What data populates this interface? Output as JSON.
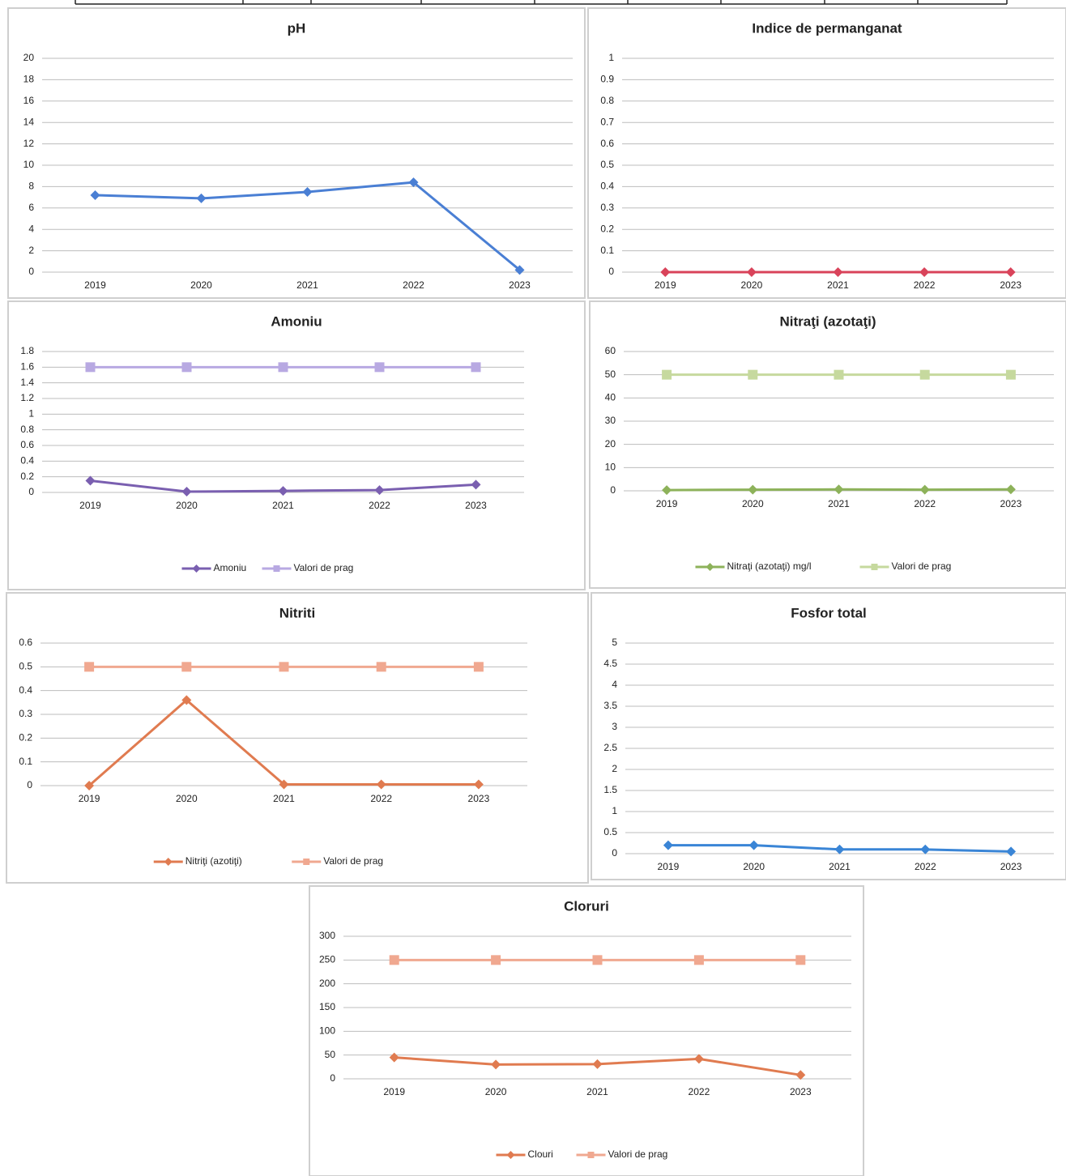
{
  "chart_data": [
    {
      "type": "line",
      "title": "pH",
      "categories": [
        "2019",
        "2020",
        "2021",
        "2022",
        "2023"
      ],
      "series": [
        {
          "name": null,
          "color": "#4a7fd4",
          "marker": "diamond",
          "values": [
            7.2,
            6.9,
            7.5,
            8.4,
            0.2
          ]
        }
      ],
      "ylim": [
        0,
        20
      ],
      "yticks": [
        0,
        2,
        4,
        6,
        8,
        10,
        12,
        14,
        16,
        18,
        20
      ],
      "grid": true,
      "legend": null
    },
    {
      "type": "line",
      "title": "Indice de permanganat",
      "categories": [
        "2019",
        "2020",
        "2021",
        "2022",
        "2023"
      ],
      "series": [
        {
          "name": null,
          "color": "#d9435a",
          "marker": "diamond",
          "values": [
            0,
            0,
            0,
            0,
            0
          ]
        }
      ],
      "ylim": [
        0,
        1
      ],
      "yticks": [
        0,
        0.1,
        0.2,
        0.3,
        0.4,
        0.5,
        0.6,
        0.7,
        0.8,
        0.9,
        1
      ],
      "grid": true,
      "legend": null
    },
    {
      "type": "line",
      "title": "Amoniu",
      "categories": [
        "2019",
        "2020",
        "2021",
        "2022",
        "2023"
      ],
      "series": [
        {
          "name": "Amoniu",
          "color": "#7a5fb0",
          "marker": "diamond",
          "values": [
            0.15,
            0.01,
            0.02,
            0.03,
            0.1
          ]
        },
        {
          "name": "Valori de prag",
          "color": "#b8a9e2",
          "marker": "square",
          "values": [
            1.6,
            1.6,
            1.6,
            1.6,
            1.6
          ]
        }
      ],
      "ylim": [
        0,
        1.8
      ],
      "yticks": [
        0,
        0.2,
        0.4,
        0.6,
        0.8,
        1,
        1.2,
        1.4,
        1.6,
        1.8
      ],
      "grid": true,
      "legend": "bottom"
    },
    {
      "type": "line",
      "title": "Nitraţi (azotaţi)",
      "categories": [
        "2019",
        "2020",
        "2021",
        "2022",
        "2023"
      ],
      "series": [
        {
          "name": "Nitraţi (azotaţi) mg/l",
          "color": "#8db25a",
          "marker": "diamond",
          "values": [
            0.3,
            0.5,
            0.6,
            0.5,
            0.6
          ]
        },
        {
          "name": "Valori de prag",
          "color": "#c6d99e",
          "marker": "square",
          "values": [
            50,
            50,
            50,
            50,
            50
          ]
        }
      ],
      "ylim": [
        0,
        60
      ],
      "yticks": [
        0,
        10,
        20,
        30,
        40,
        50,
        60
      ],
      "grid": true,
      "legend": "bottom"
    },
    {
      "type": "line",
      "title": "Nitriti",
      "categories": [
        "2019",
        "2020",
        "2021",
        "2022",
        "2023"
      ],
      "series": [
        {
          "name": "Nitriţi (azotiţi)",
          "color": "#e07b50",
          "marker": "diamond",
          "values": [
            0,
            0.36,
            0.005,
            0.005,
            0.005
          ]
        },
        {
          "name": "Valori de prag",
          "color": "#f0a890",
          "marker": "square",
          "values": [
            0.5,
            0.5,
            0.5,
            0.5,
            0.5
          ]
        }
      ],
      "ylim": [
        0,
        0.6
      ],
      "yticks": [
        0,
        0.1,
        0.2,
        0.3,
        0.4,
        0.5,
        0.6
      ],
      "grid": true,
      "legend": "bottom"
    },
    {
      "type": "line",
      "title": "Fosfor total",
      "categories": [
        "2019",
        "2020",
        "2021",
        "2022",
        "2023"
      ],
      "series": [
        {
          "name": null,
          "color": "#3a85d6",
          "marker": "diamond",
          "values": [
            0.2,
            0.2,
            0.1,
            0.1,
            0.05
          ]
        }
      ],
      "ylim": [
        0,
        5
      ],
      "yticks": [
        0,
        0.5,
        1,
        1.5,
        2,
        2.5,
        3,
        3.5,
        4,
        4.5,
        5
      ],
      "grid": true,
      "legend": null
    },
    {
      "type": "line",
      "title": "Cloruri",
      "categories": [
        "2019",
        "2020",
        "2021",
        "2022",
        "2023"
      ],
      "series": [
        {
          "name": "Clouri",
          "color": "#e07b50",
          "marker": "diamond",
          "values": [
            45,
            30,
            31,
            42,
            8
          ]
        },
        {
          "name": "Valori de prag",
          "color": "#f0a890",
          "marker": "square",
          "values": [
            250,
            250,
            250,
            250,
            250
          ]
        }
      ],
      "ylim": [
        0,
        300
      ],
      "yticks": [
        0,
        50,
        100,
        150,
        200,
        250,
        300
      ],
      "grid": true,
      "legend": "bottom"
    }
  ]
}
